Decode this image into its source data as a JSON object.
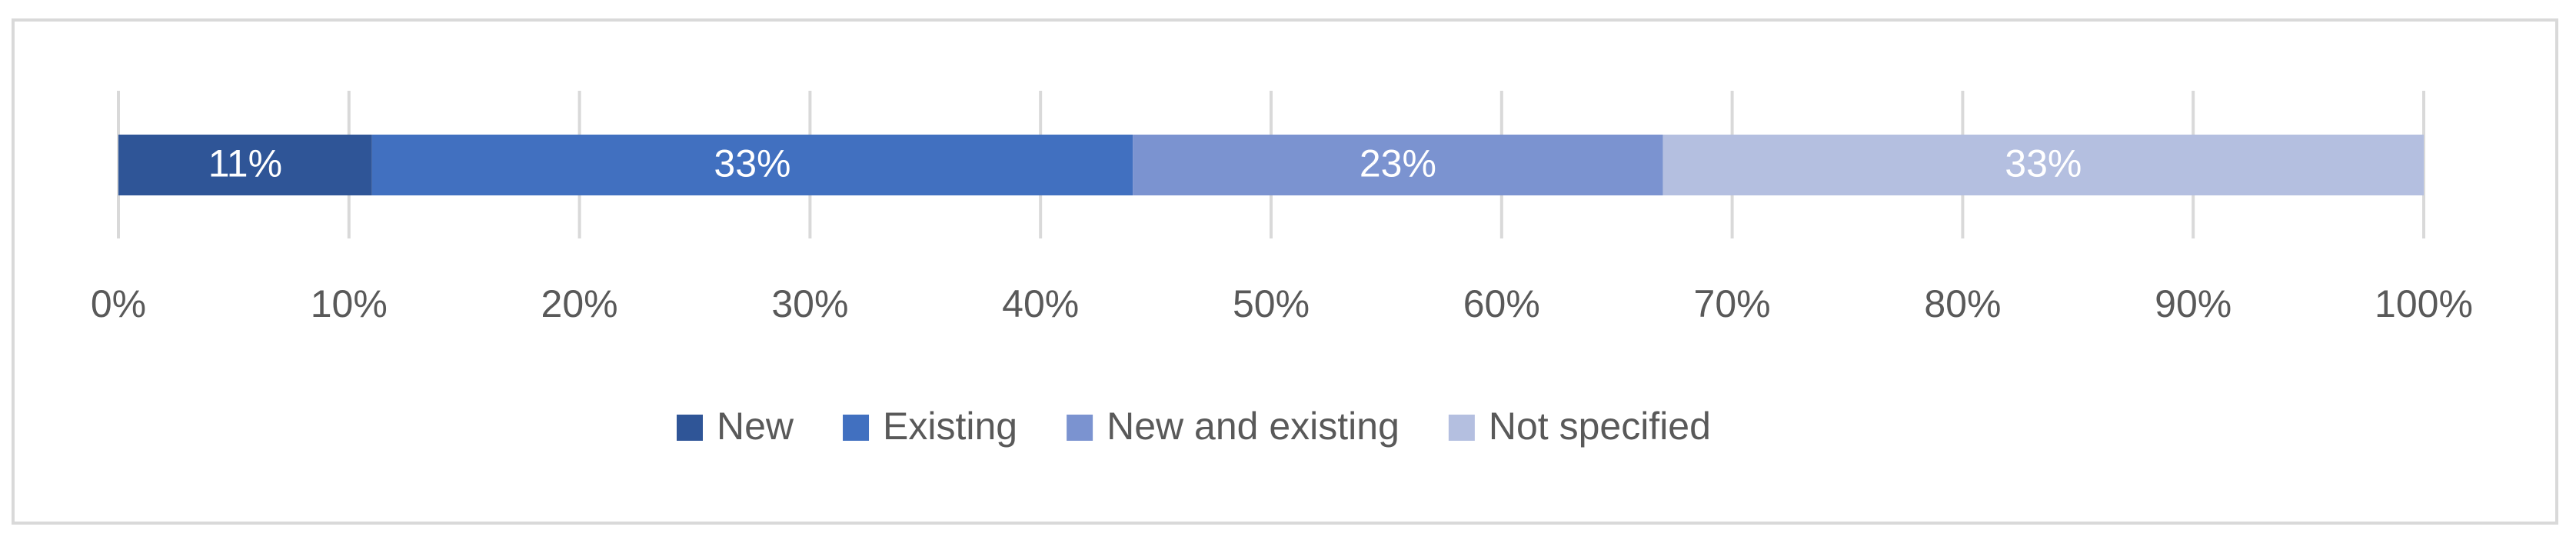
{
  "chart_data": {
    "type": "stacked-bar-horizontal",
    "categories": [
      null
    ],
    "series": [
      {
        "name": "New",
        "color": "#2f5597",
        "values": [
          11
        ],
        "value_labels": [
          "11%"
        ]
      },
      {
        "name": "Existing",
        "color": "#4170c0",
        "values": [
          33
        ],
        "value_labels": [
          "33%"
        ]
      },
      {
        "name": "New and existing",
        "color": "#7b93d0",
        "values": [
          23
        ],
        "value_labels": [
          "23%"
        ]
      },
      {
        "name": "Not specified",
        "color": "#b4bfe0",
        "values": [
          33
        ],
        "value_labels": [
          "33%"
        ]
      }
    ],
    "xlim": [
      0,
      100
    ],
    "xticks": [
      {
        "value": 0,
        "label": "0%"
      },
      {
        "value": 10,
        "label": "10%"
      },
      {
        "value": 20,
        "label": "20%"
      },
      {
        "value": 30,
        "label": "30%"
      },
      {
        "value": 40,
        "label": "40%"
      },
      {
        "value": 50,
        "label": "50%"
      },
      {
        "value": 60,
        "label": "60%"
      },
      {
        "value": 70,
        "label": "70%"
      },
      {
        "value": 80,
        "label": "80%"
      },
      {
        "value": 90,
        "label": "90%"
      },
      {
        "value": 100,
        "label": "100%"
      }
    ],
    "grid": true,
    "legend": "bottom"
  }
}
